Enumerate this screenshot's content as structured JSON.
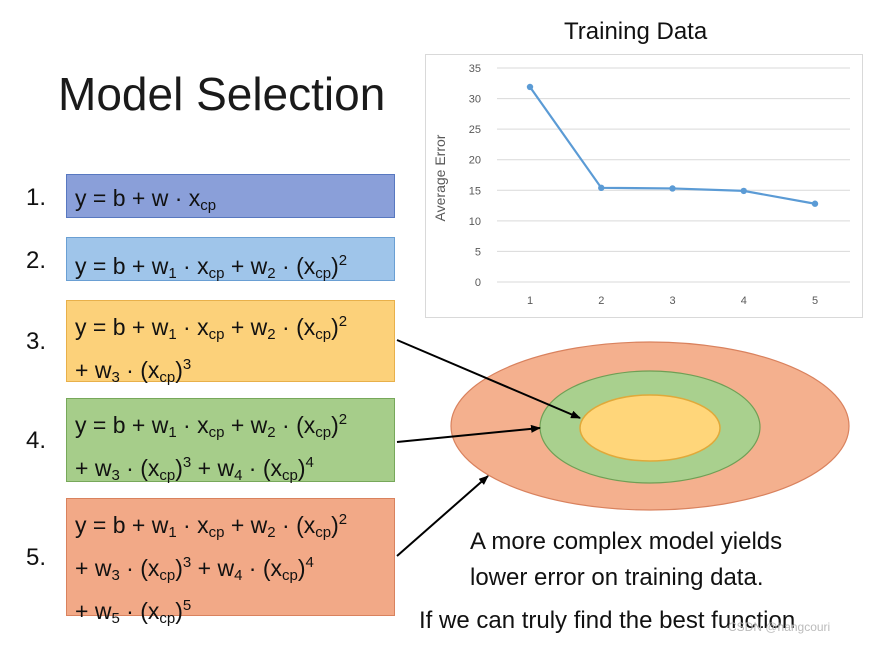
{
  "slide": {
    "title": "Model Selection",
    "models": [
      {
        "number": "1.",
        "equation": "y = b + w · x<sub>cp</sub>"
      },
      {
        "number": "2.",
        "equation": "y = b + w<sub>1</sub> · x<sub>cp</sub> + w<sub>2</sub> · (x<sub>cp</sub>)<sup>2</sup>"
      },
      {
        "number": "3.",
        "equation": "y = b + w<sub>1</sub> · x<sub>cp</sub> + w<sub>2</sub> · (x<sub>cp</sub>)<sup>2</sup><br>+ w<sub>3</sub> · (x<sub>cp</sub>)<sup>3</sup>"
      },
      {
        "number": "4.",
        "equation": "y = b + w<sub>1</sub> · x<sub>cp</sub> + w<sub>2</sub> · (x<sub>cp</sub>)<sup>2</sup><br>+ w<sub>3</sub> · (x<sub>cp</sub>)<sup>3</sup> + w<sub>4</sub> · (x<sub>cp</sub>)<sup>4</sup>"
      },
      {
        "number": "5.",
        "equation": "y = b + w<sub>1</sub> · x<sub>cp</sub> + w<sub>2</sub> · (x<sub>cp</sub>)<sup>2</sup><br>+ w<sub>3</sub> · (x<sub>cp</sub>)<sup>3</sup> + w<sub>4</sub> · (x<sub>cp</sub>)<sup>4</sup><br>+ w<sub>5</sub> · (x<sub>cp</sub>)<sup>5</sup>"
      }
    ],
    "caption_line1": "A more complex model yields",
    "caption_line2": "lower error on training data.",
    "caption_line3": "If we can truly find the best function",
    "watermark": "CSDN @hangcouri"
  },
  "chart_data": {
    "type": "line",
    "title": "Training Data",
    "xlabel": "",
    "ylabel": "Average Error",
    "x": [
      1,
      2,
      3,
      4,
      5
    ],
    "series": [
      {
        "values": [
          31.9,
          15.4,
          15.3,
          14.9,
          12.8
        ],
        "color": "#5b9bd5"
      }
    ],
    "ylim": [
      0,
      35
    ],
    "yticks": [
      0,
      5,
      10,
      15,
      20,
      25,
      30,
      35
    ],
    "grid": true,
    "legend": "none"
  },
  "diagram": {
    "ellipse_colors": {
      "outer": "#f4b08e",
      "middle": "#a9d08e",
      "inner": "#ffd67a"
    }
  }
}
